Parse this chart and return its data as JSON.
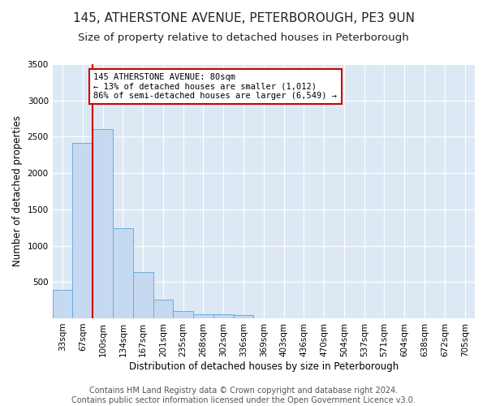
{
  "title": "145, ATHERSTONE AVENUE, PETERBOROUGH, PE3 9UN",
  "subtitle": "Size of property relative to detached houses in Peterborough",
  "xlabel": "Distribution of detached houses by size in Peterborough",
  "ylabel": "Number of detached properties",
  "footer_line1": "Contains HM Land Registry data © Crown copyright and database right 2024.",
  "footer_line2": "Contains public sector information licensed under the Open Government Licence v3.0.",
  "categories": [
    "33sqm",
    "67sqm",
    "100sqm",
    "134sqm",
    "167sqm",
    "201sqm",
    "235sqm",
    "268sqm",
    "302sqm",
    "336sqm",
    "369sqm",
    "403sqm",
    "436sqm",
    "470sqm",
    "504sqm",
    "537sqm",
    "571sqm",
    "604sqm",
    "638sqm",
    "672sqm",
    "705sqm"
  ],
  "values": [
    390,
    2420,
    2600,
    1240,
    640,
    260,
    95,
    60,
    55,
    40,
    0,
    0,
    0,
    0,
    0,
    0,
    0,
    0,
    0,
    0,
    0
  ],
  "bar_color": "#c5d9f0",
  "bar_edge_color": "#6aaed6",
  "highlight_line_color": "#cc0000",
  "annotation_text": "145 ATHERSTONE AVENUE: 80sqm\n← 13% of detached houses are smaller (1,012)\n86% of semi-detached houses are larger (6,549) →",
  "annotation_box_color": "#cc0000",
  "ylim": [
    0,
    3500
  ],
  "yticks": [
    0,
    500,
    1000,
    1500,
    2000,
    2500,
    3000,
    3500
  ],
  "bg_color": "#dce9f5",
  "fig_bg_color": "#ffffff",
  "grid_color": "#ffffff",
  "title_fontsize": 11,
  "subtitle_fontsize": 9.5,
  "axis_label_fontsize": 8.5,
  "tick_fontsize": 7.5,
  "annotation_fontsize": 7.5,
  "footer_fontsize": 7
}
